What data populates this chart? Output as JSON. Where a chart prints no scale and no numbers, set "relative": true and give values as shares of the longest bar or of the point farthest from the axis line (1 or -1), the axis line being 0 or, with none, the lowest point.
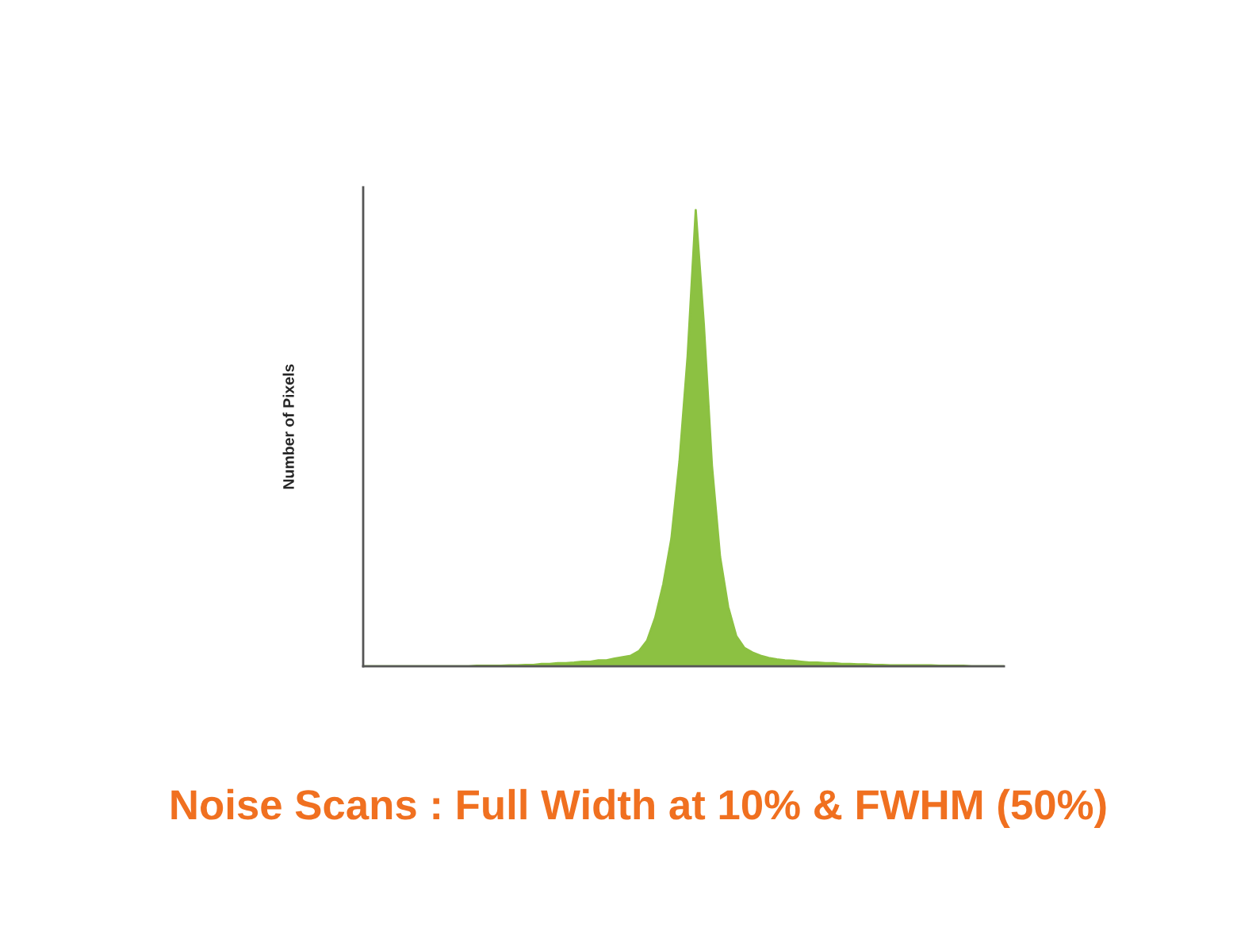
{
  "chart_data": {
    "type": "area",
    "relative": true,
    "title": "Noise Scans : Full Width at 10% & FWHM (50%)",
    "ylabel": "Number of Pixels",
    "categories": [
      null,
      null,
      null,
      null,
      null,
      null,
      null,
      null,
      null,
      null,
      null,
      null,
      null,
      null,
      null,
      null,
      null,
      null,
      null,
      null,
      null,
      null,
      null,
      null,
      null,
      null,
      null,
      null,
      null,
      null,
      null,
      null,
      null,
      null,
      null,
      null,
      null,
      null,
      null,
      null,
      null,
      null,
      null,
      null,
      null,
      null,
      null,
      null,
      null,
      null,
      null,
      null,
      null,
      null,
      null,
      null,
      null,
      null,
      null,
      null,
      null,
      null,
      null,
      null,
      null,
      null,
      null,
      null,
      null,
      null,
      null,
      null,
      null,
      null,
      null,
      null,
      null,
      null,
      null,
      null
    ],
    "series": [
      {
        "color": "#8cc142",
        "values": [
          0,
          0,
          0,
          0,
          0,
          0,
          0,
          0,
          0,
          0,
          0,
          0,
          0,
          0,
          0.001,
          0.001,
          0.001,
          0.001,
          0.002,
          0.002,
          0.003,
          0.003,
          0.005,
          0.005,
          0.007,
          0.007,
          0.008,
          0.01,
          0.01,
          0.013,
          0.013,
          0.017,
          0.02,
          0.023,
          0.033,
          0.056,
          0.106,
          0.18,
          0.28,
          0.45,
          0.68,
          1,
          0.75,
          0.44,
          0.24,
          0.13,
          0.066,
          0.04,
          0.03,
          0.023,
          0.018,
          0.015,
          0.013,
          0.012,
          0.01,
          0.008,
          0.008,
          0.007,
          0.007,
          0.005,
          0.005,
          0.004,
          0.004,
          0.003,
          0.003,
          0.002,
          0.002,
          0.002,
          0.002,
          0.002,
          0.002,
          0.001,
          0.001,
          0.001,
          0.001,
          0,
          0,
          0,
          0,
          0
        ]
      }
    ],
    "grid": false,
    "legend": false
  }
}
